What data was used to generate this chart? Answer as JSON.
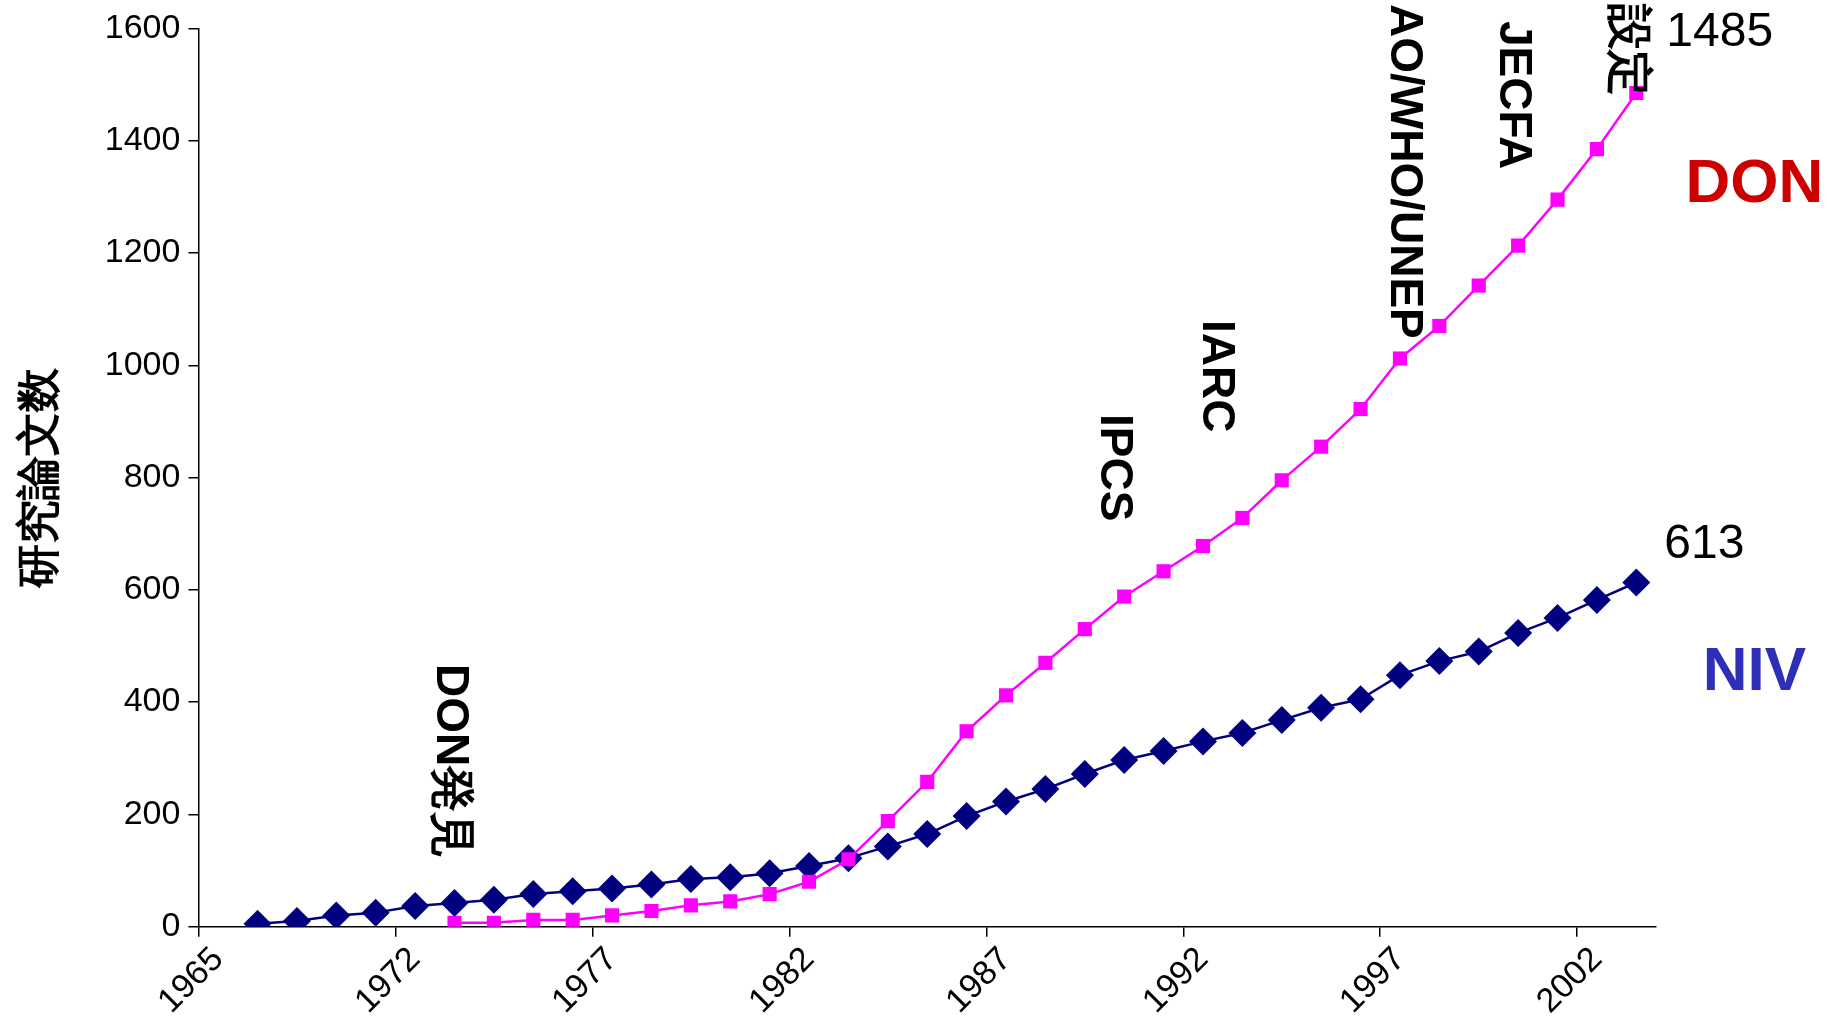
{
  "chart_data": {
    "type": "line",
    "ylabel": "研究論文数",
    "categories": [
      "1965",
      null,
      null,
      null,
      null,
      "1972",
      null,
      null,
      null,
      null,
      "1977",
      null,
      null,
      null,
      null,
      "1982",
      null,
      null,
      null,
      null,
      "1987",
      null,
      null,
      null,
      null,
      "1992",
      null,
      null,
      null,
      null,
      "1997",
      null,
      null,
      null,
      null,
      "2002",
      null
    ],
    "series": [
      {
        "name": "DON",
        "color": "#ff00ff",
        "marker": "square",
        "values": [
          null,
          null,
          null,
          null,
          null,
          null,
          7,
          7,
          12,
          12,
          20,
          28,
          38,
          45,
          58,
          80,
          120,
          188,
          258,
          348,
          412,
          470,
          530,
          588,
          633,
          678,
          728,
          795,
          855,
          922,
          1012,
          1070,
          1142,
          1213,
          1295,
          1385,
          1485
        ],
        "value_labels": [
          null,
          null,
          null,
          null,
          null,
          null,
          null,
          null,
          null,
          null,
          null,
          null,
          null,
          null,
          null,
          null,
          null,
          null,
          null,
          null,
          null,
          null,
          null,
          null,
          null,
          null,
          null,
          null,
          null,
          null,
          null,
          null,
          null,
          null,
          null,
          null,
          "1485"
        ]
      },
      {
        "name": "NIV",
        "color": "#000080",
        "marker": "diamond",
        "values": [
          null,
          5,
          10,
          20,
          25,
          37,
          42,
          48,
          58,
          63,
          68,
          75,
          85,
          88,
          95,
          108,
          122,
          143,
          165,
          197,
          223,
          245,
          272,
          297,
          313,
          330,
          345,
          368,
          390,
          405,
          448,
          473,
          490,
          523,
          550,
          582,
          613
        ],
        "value_labels": [
          null,
          null,
          null,
          null,
          null,
          null,
          null,
          null,
          null,
          null,
          null,
          null,
          null,
          null,
          null,
          null,
          null,
          null,
          null,
          null,
          null,
          null,
          null,
          null,
          null,
          null,
          null,
          null,
          null,
          null,
          null,
          null,
          null,
          null,
          null,
          null,
          "613"
        ]
      }
    ],
    "ylim": [
      0,
      1600
    ],
    "yticks": [
      0,
      200,
      400,
      600,
      800,
      1000,
      1200,
      1400,
      1600
    ],
    "grid": false,
    "legend": false,
    "line_style": "solid",
    "annotations": [
      "DON発見",
      "IPCS",
      "IARC",
      "AO/WHO/UNEP",
      "JECFA",
      "設定"
    ]
  }
}
